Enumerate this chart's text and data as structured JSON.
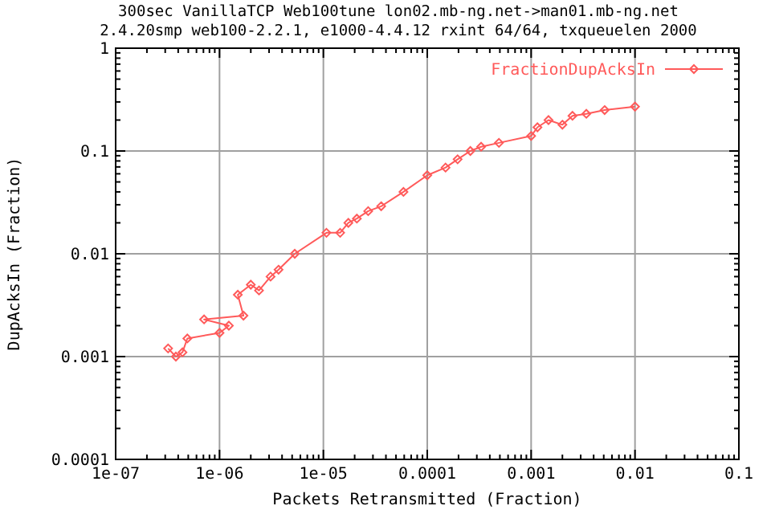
{
  "chart_data": {
    "type": "line",
    "title": "300sec VanillaTCP Web100tune lon02.mb-ng.net->man01.mb-ng.net",
    "subtitle": "2.4.20smp web100-2.2.1, e1000-4.4.12 rxint 64/64, txqueuelen 2000",
    "xlabel": "Packets Retransmitted (Fraction)",
    "ylabel": "DupAcksIn (Fraction)",
    "log": "xy",
    "grid": true,
    "legend": "top right",
    "marker": "diamond",
    "line_style": "solid",
    "xlim": [
      1e-07,
      0.1
    ],
    "ylim": [
      0.0001,
      1
    ],
    "xticks": [
      {
        "value": 1e-07,
        "label": "1e-07"
      },
      {
        "value": 1e-06,
        "label": "1e-06"
      },
      {
        "value": 1e-05,
        "label": "1e-05"
      },
      0.0001,
      0.001,
      0.01,
      0.1
    ],
    "yticks": [
      0.0001,
      0.001,
      0.01,
      0.1,
      1
    ],
    "series": [
      {
        "name": "FractionDupAcksIn",
        "color": "#ff5a5a",
        "x": [
          3.2e-07,
          3.8e-07,
          4.4e-07,
          4.9e-07,
          1e-06,
          1.23e-06,
          7.1e-07,
          1.7e-06,
          1.5e-06,
          2e-06,
          2.4e-06,
          3.1e-06,
          3.7e-06,
          5.3e-06,
          1.07e-05,
          1.45e-05,
          1.74e-05,
          2.1e-05,
          2.7e-05,
          3.6e-05,
          5.9e-05,
          0.0001,
          0.00015,
          0.000196,
          0.00026,
          0.00033,
          0.00049,
          0.001,
          0.00115,
          0.00147,
          0.002,
          0.0025,
          0.0034,
          0.0051,
          0.01
        ],
        "values": [
          0.0012,
          0.001,
          0.0011,
          0.0015,
          0.0017,
          0.002,
          0.0023,
          0.0025,
          0.004,
          0.005,
          0.0044,
          0.006,
          0.007,
          0.01,
          0.016,
          0.016,
          0.02,
          0.022,
          0.026,
          0.029,
          0.04,
          0.058,
          0.069,
          0.083,
          0.1,
          0.11,
          0.12,
          0.14,
          0.17,
          0.2,
          0.18,
          0.22,
          0.23,
          0.25,
          0.27
        ]
      }
    ]
  }
}
